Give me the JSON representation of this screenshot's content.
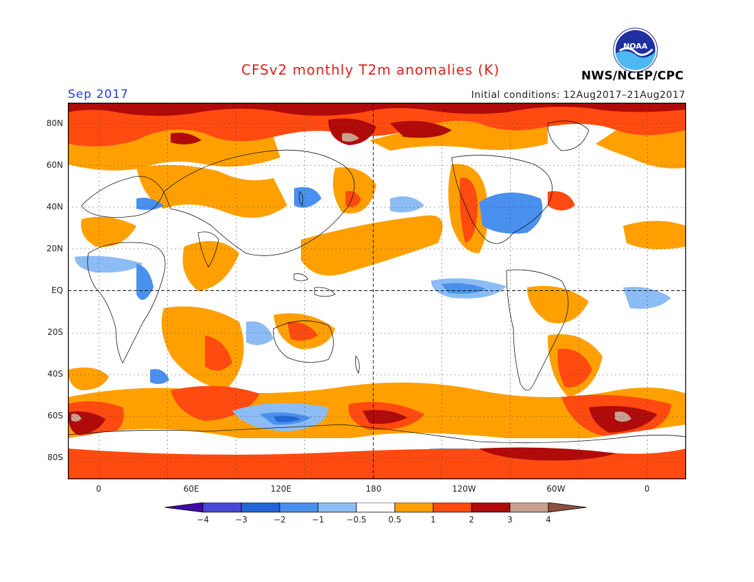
{
  "title": "CFSv2 monthly T2m anomalies (K)",
  "month": "Sep 2017",
  "initial_conditions": "Initial conditions: 12Aug2017–21Aug2017",
  "agency": "NWS/NCEP/CPC",
  "logo": {
    "icon": "noaa-logo",
    "text": "NOAA"
  },
  "lat_labels": [
    "80N",
    "60N",
    "40N",
    "20N",
    "EQ",
    "20S",
    "40S",
    "60S",
    "80S"
  ],
  "lon_labels": [
    "0",
    "60E",
    "120E",
    "180",
    "120W",
    "60W",
    "0"
  ],
  "colorbar": {
    "labels": [
      "−4",
      "−3",
      "−2",
      "−1",
      "−0.5",
      "0.5",
      "1",
      "2",
      "3",
      "4"
    ],
    "colors": [
      "#3e0aa8",
      "#4848d8",
      "#2066d8",
      "#4a90ee",
      "#8cbcf4",
      "#ffffff",
      "#ffa000",
      "#ff4a10",
      "#b00a0a",
      "#c8a090",
      "#8a5040"
    ]
  },
  "colors": {
    "ocean_neutral": "#ffffff",
    "warm_05_1": "#ffa000",
    "warm_1_2": "#ff4a10",
    "warm_2_3": "#b00a0a",
    "warm_3_4": "#c8a090",
    "cool_05_1": "#8cbcf4",
    "cool_1_2": "#4a90ee",
    "cool_2_3": "#2066d8"
  }
}
